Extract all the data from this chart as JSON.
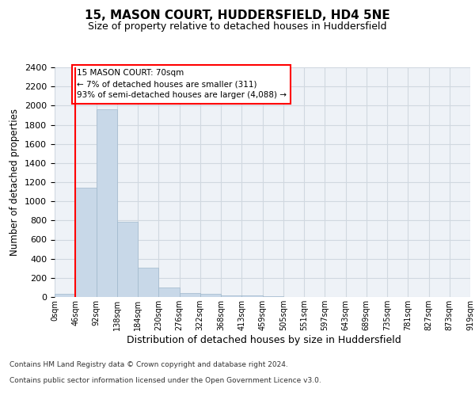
{
  "title": "15, MASON COURT, HUDDERSFIELD, HD4 5NE",
  "subtitle": "Size of property relative to detached houses in Huddersfield",
  "xlabel": "Distribution of detached houses by size in Huddersfield",
  "ylabel": "Number of detached properties",
  "bar_values": [
    30,
    1140,
    1960,
    790,
    305,
    100,
    45,
    35,
    20,
    15,
    10,
    0,
    0,
    0,
    0,
    0,
    0,
    0,
    0,
    0
  ],
  "bar_labels": [
    "0sqm",
    "46sqm",
    "92sqm",
    "138sqm",
    "184sqm",
    "230sqm",
    "276sqm",
    "322sqm",
    "368sqm",
    "413sqm",
    "459sqm",
    "505sqm",
    "551sqm",
    "597sqm",
    "643sqm",
    "689sqm",
    "735sqm",
    "781sqm",
    "827sqm",
    "873sqm",
    "919sqm"
  ],
  "bar_color": "#c8d8e8",
  "bar_edge_color": "#a0b8cc",
  "vline_x": 1,
  "vline_color": "red",
  "ylim": [
    0,
    2400
  ],
  "yticks": [
    0,
    200,
    400,
    600,
    800,
    1000,
    1200,
    1400,
    1600,
    1800,
    2000,
    2200,
    2400
  ],
  "annotation_text": "15 MASON COURT: 70sqm\n← 7% of detached houses are smaller (311)\n93% of semi-detached houses are larger (4,088) →",
  "annotation_box_color": "white",
  "annotation_box_edge": "red",
  "footer_line1": "Contains HM Land Registry data © Crown copyright and database right 2024.",
  "footer_line2": "Contains public sector information licensed under the Open Government Licence v3.0.",
  "grid_color": "#d0d8e0",
  "background_color": "#eef2f7"
}
